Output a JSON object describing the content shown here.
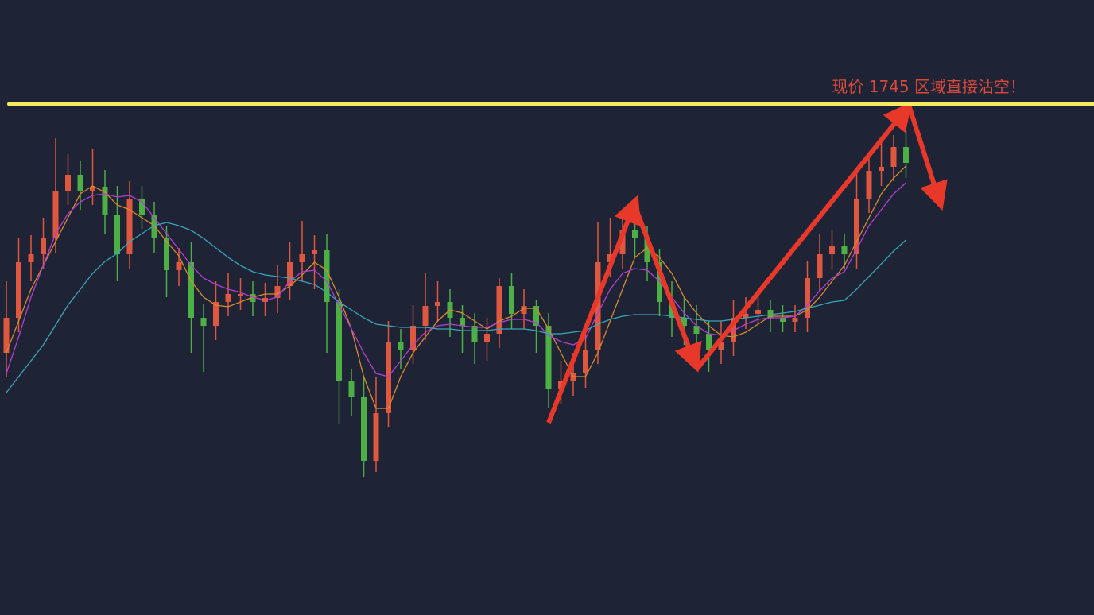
{
  "chart_data": {
    "type": "candlestick",
    "annotation": "现价 1745 区域直接沽空！",
    "level": 643,
    "level_color": "#f4ec5c",
    "ylim": [
      0,
      774
    ],
    "up_color": "#e0573f",
    "down_color": "#4db044",
    "open": [
      330,
      374,
      444,
      454,
      474,
      534,
      554,
      534,
      539,
      504,
      454,
      524,
      504,
      474,
      434,
      444,
      374,
      364,
      394,
      404,
      404,
      394,
      399,
      414,
      444,
      454,
      459,
      394,
      294,
      274,
      194,
      254,
      344,
      334,
      364,
      389,
      394,
      374,
      364,
      344,
      354,
      414,
      379,
      389,
      364,
      284,
      294,
      304,
      334,
      444,
      454,
      484,
      474,
      444,
      394,
      374,
      364,
      354,
      334,
      344,
      374,
      379,
      384,
      374,
      369,
      374,
      424,
      454,
      464,
      454,
      524,
      559,
      564,
      589
    ],
    "high": [
      420,
      474,
      478,
      500,
      600,
      580,
      572,
      586,
      560,
      540,
      546,
      540,
      520,
      490,
      462,
      470,
      392,
      420,
      430,
      424,
      420,
      418,
      440,
      470,
      496,
      478,
      480,
      410,
      310,
      300,
      300,
      370,
      360,
      390,
      430,
      420,
      410,
      390,
      380,
      374,
      424,
      430,
      410,
      396,
      380,
      320,
      330,
      360,
      494,
      500,
      510,
      500,
      490,
      460,
      420,
      400,
      390,
      370,
      370,
      396,
      400,
      404,
      396,
      390,
      390,
      446,
      480,
      484,
      480,
      560,
      580,
      600,
      604,
      610
    ],
    "low": [
      300,
      356,
      420,
      436,
      456,
      516,
      510,
      516,
      480,
      420,
      436,
      486,
      456,
      400,
      414,
      330,
      306,
      346,
      376,
      384,
      376,
      376,
      380,
      396,
      420,
      410,
      330,
      240,
      250,
      174,
      180,
      236,
      310,
      316,
      346,
      370,
      350,
      330,
      316,
      320,
      336,
      360,
      360,
      330,
      260,
      266,
      276,
      286,
      316,
      426,
      436,
      450,
      420,
      376,
      350,
      340,
      320,
      306,
      316,
      326,
      360,
      366,
      356,
      356,
      356,
      356,
      406,
      436,
      436,
      436,
      506,
      540,
      546,
      550
    ],
    "close": [
      374,
      444,
      454,
      474,
      534,
      554,
      534,
      539,
      504,
      454,
      524,
      504,
      474,
      434,
      444,
      374,
      364,
      394,
      404,
      404,
      394,
      399,
      414,
      444,
      454,
      459,
      394,
      294,
      274,
      194,
      254,
      344,
      334,
      364,
      389,
      394,
      374,
      364,
      344,
      354,
      414,
      379,
      389,
      364,
      284,
      294,
      304,
      334,
      444,
      454,
      484,
      474,
      444,
      394,
      374,
      364,
      354,
      334,
      344,
      374,
      379,
      384,
      374,
      369,
      374,
      424,
      454,
      464,
      454,
      524,
      559,
      564,
      589,
      569
    ],
    "lines": [
      {
        "color": "#d88a2e",
        "values": [
          330,
          370,
          410,
          440,
          470,
          500,
          530,
          540,
          532,
          516,
          510,
          500,
          490,
          470,
          452,
          420,
          400,
          390,
          388,
          394,
          400,
          404,
          404,
          414,
          428,
          444,
          434,
          400,
          360,
          300,
          260,
          260,
          300,
          330,
          350,
          370,
          384,
          380,
          370,
          360,
          370,
          376,
          386,
          386,
          360,
          330,
          300,
          300,
          330,
          370,
          410,
          450,
          462,
          450,
          430,
          400,
          380,
          364,
          352,
          350,
          356,
          366,
          376,
          376,
          376,
          384,
          400,
          420,
          440,
          470,
          500,
          530,
          550,
          565
        ]
      },
      {
        "color": "#b43fd0",
        "values": [
          304,
          350,
          400,
          440,
          480,
          505,
          520,
          528,
          530,
          526,
          528,
          520,
          500,
          480,
          460,
          440,
          424,
          416,
          410,
          406,
          400,
          396,
          400,
          420,
          432,
          434,
          420,
          390,
          360,
          330,
          304,
          300,
          320,
          340,
          356,
          364,
          366,
          364,
          362,
          362,
          368,
          372,
          372,
          368,
          352,
          344,
          340,
          348,
          380,
          410,
          430,
          436,
          434,
          420,
          400,
          380,
          364,
          354,
          352,
          358,
          366,
          372,
          374,
          374,
          376,
          390,
          408,
          424,
          432,
          460,
          490,
          510,
          530,
          544
        ]
      },
      {
        "color": "#3aa6b8",
        "values": [
          280,
          300,
          320,
          340,
          365,
          390,
          410,
          430,
          445,
          455,
          470,
          480,
          490,
          494,
          490,
          484,
          474,
          462,
          450,
          440,
          432,
          428,
          426,
          424,
          420,
          416,
          406,
          394,
          384,
          374,
          366,
          364,
          362,
          362,
          362,
          360,
          360,
          358,
          358,
          358,
          360,
          360,
          360,
          358,
          354,
          354,
          356,
          358,
          366,
          372,
          376,
          378,
          378,
          378,
          376,
          374,
          372,
          370,
          370,
          372,
          374,
          376,
          378,
          380,
          382,
          386,
          390,
          394,
          396,
          410,
          426,
          442,
          458,
          472
        ]
      }
    ]
  }
}
